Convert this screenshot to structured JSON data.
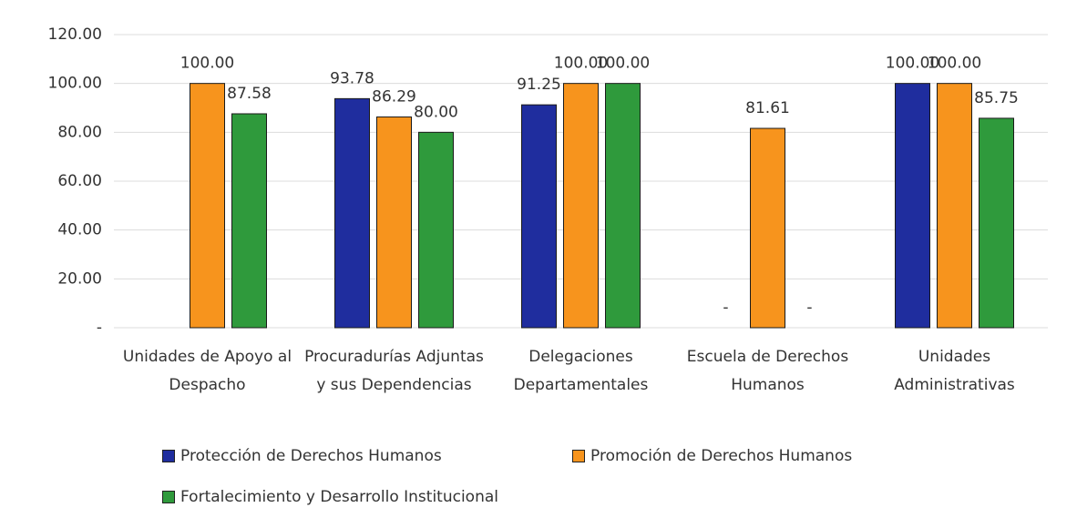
{
  "chart_data": {
    "type": "bar",
    "categories": [
      "Unidades de Apoyo al Despacho",
      "Procuradurías Adjuntas y sus Dependencias",
      "Delegaciones Departamentales",
      "Escuela de Derechos Humanos",
      "Unidades Administrativas"
    ],
    "series": [
      {
        "name": "Protección de Derechos Humanos",
        "color": "#1f2d9e",
        "values": [
          null,
          93.78,
          91.25,
          0,
          100
        ],
        "value_labels": [
          null,
          "93.78",
          "91.25",
          "-",
          "100.00"
        ]
      },
      {
        "name": "Promoción de Derechos Humanos",
        "color": "#f7941d",
        "values": [
          100,
          86.29,
          100,
          81.61,
          100
        ],
        "value_labels": [
          "100.00",
          "86.29",
          "100.00",
          "81.61",
          "100.00"
        ]
      },
      {
        "name": "Fortalecimiento y Desarrollo Institucional",
        "color": "#2f9a3c",
        "values": [
          87.58,
          80,
          100,
          0,
          85.75
        ],
        "value_labels": [
          "87.58",
          "80.00",
          "100.00",
          "-",
          "85.75"
        ]
      }
    ],
    "ylim": [
      0,
      120
    ],
    "yticks": [
      {
        "value": 0,
        "label": "-"
      },
      {
        "value": 20,
        "label": "20.00"
      },
      {
        "value": 40,
        "label": "40.00"
      },
      {
        "value": 60,
        "label": "60.00"
      },
      {
        "value": 80,
        "label": "80.00"
      },
      {
        "value": 100,
        "label": "100.00"
      },
      {
        "value": 120,
        "label": "120.00"
      }
    ],
    "grid": true
  }
}
